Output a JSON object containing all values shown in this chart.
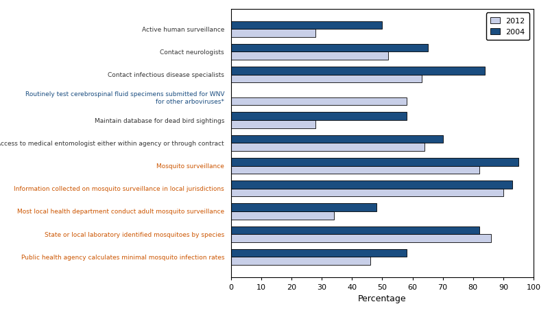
{
  "categories": [
    "Active human surveillance",
    "Contact neurologists",
    "Contact infectious disease specialists",
    "Routinely test cerebrospinal fluid specimens submitted for WNV\nfor other arboviruses*",
    "Maintain database for dead bird sightings",
    "Access to medical entomologist either within agency or through contract",
    "Mosquito surveillance",
    "Information collected on mosquito surveillance in local jurisdictions",
    "Most local health department conduct adult mosquito surveillance",
    "State or local laboratory identified mosquitoes by species",
    "Public health agency calculates minimal mosquito infection rates"
  ],
  "values_2012": [
    28,
    52,
    63,
    58,
    28,
    64,
    82,
    90,
    34,
    86,
    46
  ],
  "values_2004": [
    50,
    65,
    84,
    0,
    58,
    70,
    95,
    93,
    48,
    82,
    58
  ],
  "color_2012": "#c8cfe8",
  "color_2004": "#1a4d80",
  "xlabel": "Percentage",
  "xlim": [
    0,
    100
  ],
  "xticks": [
    0,
    10,
    20,
    30,
    40,
    50,
    60,
    70,
    80,
    90,
    100
  ],
  "legend_labels": [
    "2012",
    "2004"
  ],
  "bar_height": 0.35,
  "label_colors": [
    "#333333",
    "#333333",
    "#333333",
    "#1a4d80",
    "#333333",
    "#333333",
    "#cc5500",
    "#cc5500",
    "#cc5500",
    "#cc5500",
    "#cc5500"
  ]
}
